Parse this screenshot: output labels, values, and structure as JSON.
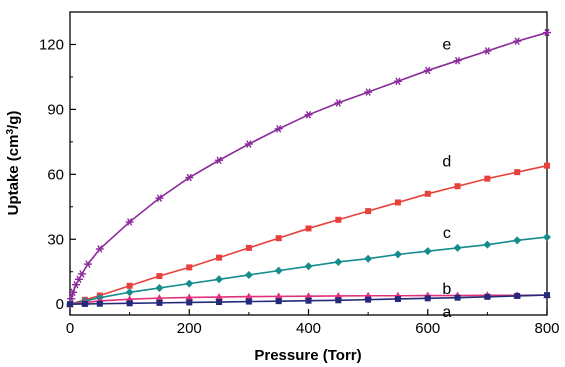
{
  "chart_data": {
    "type": "line",
    "xlabel": "Pressure (Torr)",
    "ylabel_main": "Uptake (cm",
    "ylabel_sup": "3",
    "ylabel_tail": "/g)",
    "xlim": [
      0,
      800
    ],
    "ylim": [
      -5,
      135
    ],
    "xticks": [
      0,
      200,
      400,
      600,
      800
    ],
    "yticks": [
      0,
      30,
      60,
      90,
      120
    ],
    "grid": false,
    "series": [
      {
        "name": "e",
        "color": "#8b2a9a",
        "marker": "star",
        "x": [
          2,
          5,
          10,
          15,
          20,
          30,
          50,
          100,
          150,
          200,
          250,
          300,
          350,
          400,
          450,
          500,
          550,
          600,
          650,
          700,
          750,
          800
        ],
        "y": [
          2.5,
          5.5,
          9,
          11.5,
          14,
          18.5,
          25.5,
          38,
          49,
          58.5,
          66.5,
          74,
          81,
          87.5,
          93,
          98,
          103,
          108,
          112.5,
          117,
          121.5,
          125.5
        ]
      },
      {
        "name": "d",
        "color": "#e8403a",
        "marker": "square",
        "x": [
          0,
          25,
          50,
          100,
          150,
          200,
          250,
          300,
          350,
          400,
          450,
          500,
          550,
          600,
          650,
          700,
          750,
          800
        ],
        "y": [
          0,
          2,
          4,
          8.5,
          13,
          17,
          21.5,
          26,
          30.5,
          35,
          39,
          43,
          47,
          51,
          54.5,
          58,
          61,
          64
        ]
      },
      {
        "name": "c",
        "color": "#168c8c",
        "marker": "diamond",
        "x": [
          0,
          25,
          50,
          100,
          150,
          200,
          250,
          300,
          350,
          400,
          450,
          500,
          550,
          600,
          650,
          700,
          750,
          800
        ],
        "y": [
          0,
          1.5,
          3,
          5.5,
          7.5,
          9.5,
          11.5,
          13.5,
          15.5,
          17.5,
          19.5,
          21,
          23,
          24.5,
          26,
          27.5,
          29.5,
          31
        ]
      },
      {
        "name": "b",
        "color": "#e0307a",
        "marker": "triangle",
        "x": [
          0,
          25,
          50,
          100,
          150,
          200,
          250,
          300,
          350,
          400,
          450,
          500,
          550,
          600,
          650,
          700,
          750,
          800
        ],
        "y": [
          0,
          0.8,
          1.5,
          2.3,
          2.8,
          3.1,
          3.3,
          3.5,
          3.6,
          3.7,
          3.8,
          3.9,
          3.9,
          4.0,
          4.0,
          4.1,
          4.1,
          4.2
        ]
      },
      {
        "name": "a",
        "color": "#232a7a",
        "marker": "square",
        "x": [
          0,
          25,
          50,
          100,
          150,
          200,
          250,
          300,
          350,
          400,
          450,
          500,
          550,
          600,
          650,
          700,
          750,
          800
        ],
        "y": [
          0,
          0.1,
          0.2,
          0.4,
          0.6,
          0.8,
          1.0,
          1.2,
          1.4,
          1.6,
          1.8,
          2.1,
          2.4,
          2.7,
          3.0,
          3.4,
          3.8,
          4.2
        ]
      }
    ],
    "curve_labels": [
      {
        "text": "e",
        "x": 632,
        "y": 120
      },
      {
        "text": "d",
        "x": 632,
        "y": 66
      },
      {
        "text": "c",
        "x": 632,
        "y": 33
      },
      {
        "text": "b",
        "x": 632,
        "y": 7
      },
      {
        "text": "a",
        "x": 632,
        "y": -3.5
      }
    ]
  }
}
